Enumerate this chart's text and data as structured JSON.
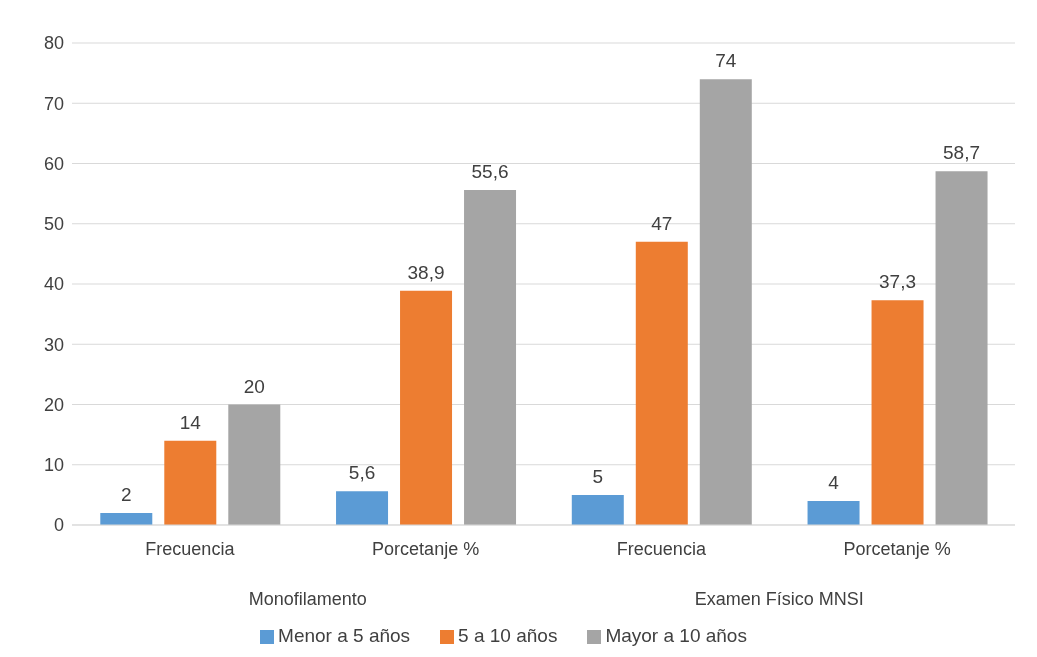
{
  "chart_data": {
    "type": "bar",
    "categories": [
      "Frecuencia",
      "Porcetanje %",
      "Frecuencia",
      "Porcetanje %"
    ],
    "series": [
      {
        "name": "Menor a 5 años",
        "color": "#5b9bd5",
        "values": [
          2,
          5.6,
          5,
          4
        ],
        "value_labels": [
          "2",
          "5,6",
          "5",
          "4"
        ]
      },
      {
        "name": "5 a 10 años",
        "color": "#ed7d31",
        "values": [
          14,
          38.9,
          47,
          37.3
        ],
        "value_labels": [
          "14",
          "38,9",
          "47",
          "37,3"
        ]
      },
      {
        "name": "Mayor a 10 años",
        "color": "#a5a5a5",
        "values": [
          20,
          55.6,
          74,
          58.7
        ],
        "value_labels": [
          "20",
          "55,6",
          "74",
          "58,7"
        ]
      }
    ],
    "annotations": [
      "Monofilamento",
      "Examen Físico MNSI"
    ],
    "ylim": [
      0,
      80
    ],
    "yticks": [
      0,
      10,
      20,
      30,
      40,
      50,
      60,
      70,
      80
    ],
    "grid": "y",
    "legend": "bottom"
  }
}
